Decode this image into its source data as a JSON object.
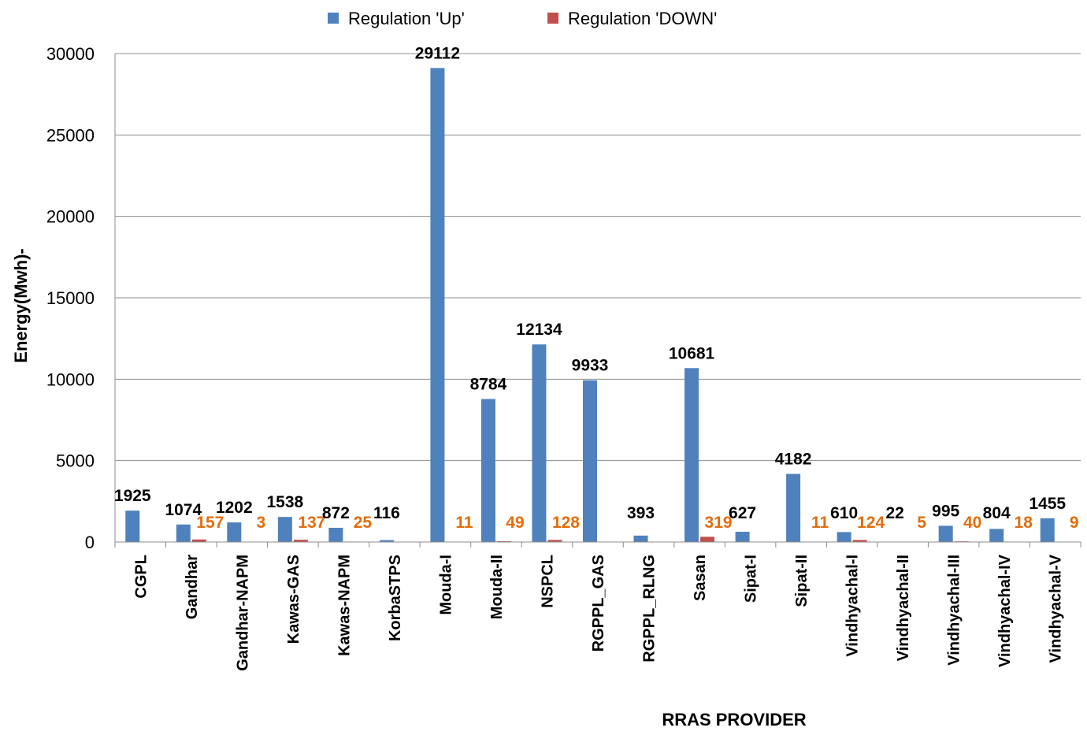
{
  "chart_data": {
    "type": "bar",
    "title": "",
    "xlabel": "RRAS PROVIDER",
    "ylabel": "Energy(Mwh)-",
    "ylim": [
      0,
      30000
    ],
    "yticks": [
      0,
      5000,
      10000,
      15000,
      20000,
      25000,
      30000
    ],
    "grid": true,
    "legend_position": "top",
    "categories": [
      "CGPL",
      "Gandhar",
      "Gandhar-NAPM",
      "Kawas-GAS",
      "Kawas-NAPM",
      "KorbaSTPS",
      "Mouda-I",
      "Mouda-II",
      "NSPCL",
      "RGPPL_GAS",
      "RGPPL_RLNG",
      "Sasan",
      "Sipat-I",
      "Sipat-II",
      "Vindhyachal-I",
      "Vindhyachal-II",
      "Vindhyachal-III",
      "Vindhyachal-IV",
      "Vindhyachal-V"
    ],
    "series": [
      {
        "name": "Regulation 'Up'",
        "color": "#4F81BD",
        "label_color": "#000000",
        "values": [
          1925,
          1074,
          1202,
          1538,
          872,
          116,
          29112,
          8784,
          12134,
          9933,
          393,
          10681,
          627,
          4182,
          610,
          22,
          995,
          804,
          1455
        ]
      },
      {
        "name": "Regulation 'DOWN'",
        "color": "#C0504D",
        "label_color": "#E46C0A",
        "values": [
          null,
          157,
          3,
          137,
          25,
          null,
          11,
          49,
          128,
          null,
          null,
          319,
          null,
          11,
          124,
          5,
          40,
          18,
          9
        ]
      }
    ]
  }
}
